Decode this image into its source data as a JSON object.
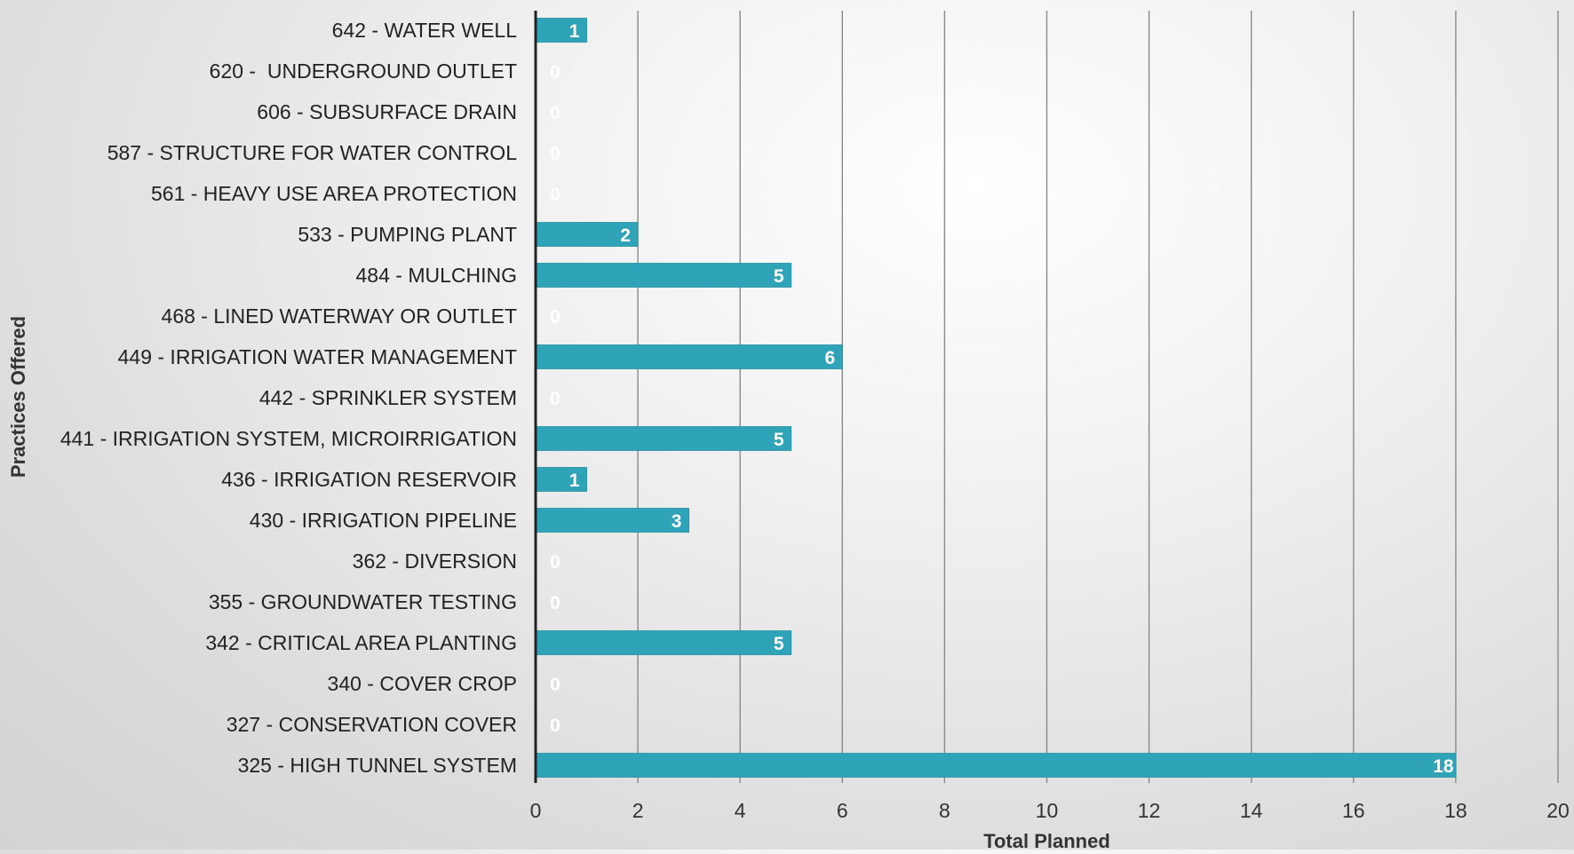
{
  "chart_data": {
    "type": "bar",
    "orientation": "horizontal",
    "categories": [
      "642 - WATER WELL",
      "620 -  UNDERGROUND OUTLET",
      "606 - SUBSURFACE DRAIN",
      "587 - STRUCTURE FOR WATER CONTROL",
      "561 - HEAVY USE AREA PROTECTION",
      "533 - PUMPING PLANT",
      "484 - MULCHING",
      "468 - LINED WATERWAY OR OUTLET",
      "449 - IRRIGATION WATER MANAGEMENT",
      "442 - SPRINKLER SYSTEM",
      "441 - IRRIGATION SYSTEM, MICROIRRIGATION",
      "436 - IRRIGATION RESERVOIR",
      "430 - IRRIGATION PIPELINE",
      "362 - DIVERSION",
      "355 - GROUNDWATER TESTING",
      "342 - CRITICAL AREA PLANTING",
      "340 - COVER CROP",
      "327 - CONSERVATION COVER",
      "325 - HIGH TUNNEL SYSTEM"
    ],
    "values": [
      1,
      0,
      0,
      0,
      0,
      2,
      5,
      0,
      6,
      0,
      5,
      1,
      3,
      0,
      0,
      5,
      0,
      0,
      18
    ],
    "title": "",
    "xlabel": "Total Planned",
    "ylabel": "Practices Offered",
    "xlim": [
      0,
      20
    ],
    "xticks": [
      0,
      2,
      4,
      6,
      8,
      10,
      12,
      14,
      16,
      18,
      20
    ],
    "data_labels": true,
    "grid": "vertical",
    "legend": "none",
    "colors": {
      "bar": "#2fa4b8",
      "bar_edge": "#27919f",
      "grid": "#8a8a8a",
      "axis": "#222222",
      "value_label": "#ffffff"
    }
  }
}
